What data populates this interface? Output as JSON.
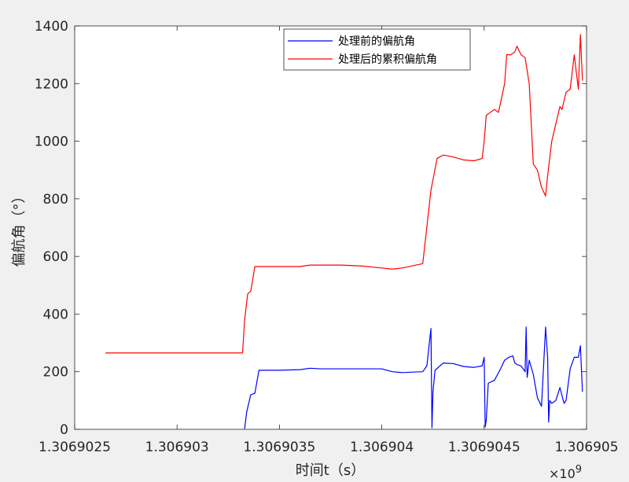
{
  "chart_data": {
    "type": "line",
    "xlabel": "时间t（s）",
    "ylabel": "偏航角（°）",
    "xlim": [
      1306902.5,
      1306905.0
    ],
    "ylim": [
      0,
      1400
    ],
    "x_scale_exponent": "×10",
    "x_scale_exponent_power": "9",
    "x_ticks": [
      1306902.5,
      1306903.0,
      1306903.5,
      1306904.0,
      1306904.5,
      1306905.0
    ],
    "x_tick_labels": [
      "1.3069025",
      "1.306903",
      "1.3069035",
      "1.306904",
      "1.3069045",
      "1.306905"
    ],
    "y_ticks": [
      0,
      200,
      400,
      600,
      800,
      1000,
      1200,
      1400
    ],
    "y_tick_labels": [
      "0",
      "200",
      "400",
      "600",
      "800",
      "1000",
      "1200",
      "1400"
    ],
    "grid": false,
    "legend_position": "top",
    "series": [
      {
        "name": "处理前的偏航角",
        "color": "#0000ff",
        "x": [
          1306903.33,
          1306903.34,
          1306903.36,
          1306903.38,
          1306903.4,
          1306903.5,
          1306903.6,
          1306903.65,
          1306903.7,
          1306903.8,
          1306903.9,
          1306904.0,
          1306904.05,
          1306904.1,
          1306904.2,
          1306904.22,
          1306904.24,
          1306904.245,
          1306904.25,
          1306904.26,
          1306904.3,
          1306904.35,
          1306904.4,
          1306904.45,
          1306904.49,
          1306904.5,
          1306904.505,
          1306904.51,
          1306904.52,
          1306904.55,
          1306904.58,
          1306904.6,
          1306904.62,
          1306904.64,
          1306904.65,
          1306904.66,
          1306904.68,
          1306904.7,
          1306904.705,
          1306904.71,
          1306904.72,
          1306904.74,
          1306904.76,
          1306904.78,
          1306904.8,
          1306904.81,
          1306904.815,
          1306904.82,
          1306904.83,
          1306904.85,
          1306904.87,
          1306904.89,
          1306904.9,
          1306904.92,
          1306904.94,
          1306904.96,
          1306904.97,
          1306904.98
        ],
        "y": [
          2,
          60,
          120,
          125,
          205,
          205,
          207,
          212,
          210,
          210,
          210,
          210,
          200,
          197,
          200,
          220,
          350,
          5,
          130,
          205,
          230,
          228,
          218,
          215,
          220,
          250,
          8,
          30,
          160,
          170,
          210,
          240,
          250,
          255,
          230,
          225,
          220,
          200,
          355,
          180,
          240,
          190,
          110,
          80,
          355,
          250,
          25,
          100,
          90,
          100,
          145,
          90,
          100,
          210,
          250,
          250,
          290,
          130
        ]
      },
      {
        "name": "处理后的累积偏航角",
        "color": "#ff0000",
        "x": [
          1306902.65,
          1306903.0,
          1306903.32,
          1306903.33,
          1306903.345,
          1306903.36,
          1306903.38,
          1306903.4,
          1306903.5,
          1306903.6,
          1306903.65,
          1306903.7,
          1306903.8,
          1306903.9,
          1306904.0,
          1306904.05,
          1306904.1,
          1306904.2,
          1306904.24,
          1306904.27,
          1306904.3,
          1306904.35,
          1306904.4,
          1306904.45,
          1306904.49,
          1306904.5,
          1306904.51,
          1306904.53,
          1306904.55,
          1306904.57,
          1306904.6,
          1306904.61,
          1306904.63,
          1306904.65,
          1306904.66,
          1306904.68,
          1306904.7,
          1306904.72,
          1306904.74,
          1306904.76,
          1306904.78,
          1306904.8,
          1306904.81,
          1306904.83,
          1306904.85,
          1306904.87,
          1306904.88,
          1306904.9,
          1306904.92,
          1306904.94,
          1306904.96,
          1306904.97,
          1306904.98
        ],
        "y": [
          265,
          265,
          265,
          380,
          470,
          480,
          565,
          565,
          565,
          565,
          570,
          570,
          570,
          567,
          560,
          556,
          560,
          575,
          830,
          940,
          952,
          945,
          935,
          932,
          940,
          1000,
          1090,
          1100,
          1110,
          1100,
          1200,
          1300,
          1300,
          1310,
          1330,
          1300,
          1290,
          1200,
          920,
          900,
          840,
          810,
          880,
          1000,
          1060,
          1120,
          1110,
          1170,
          1180,
          1300,
          1180,
          1370,
          1210
        ]
      }
    ]
  }
}
